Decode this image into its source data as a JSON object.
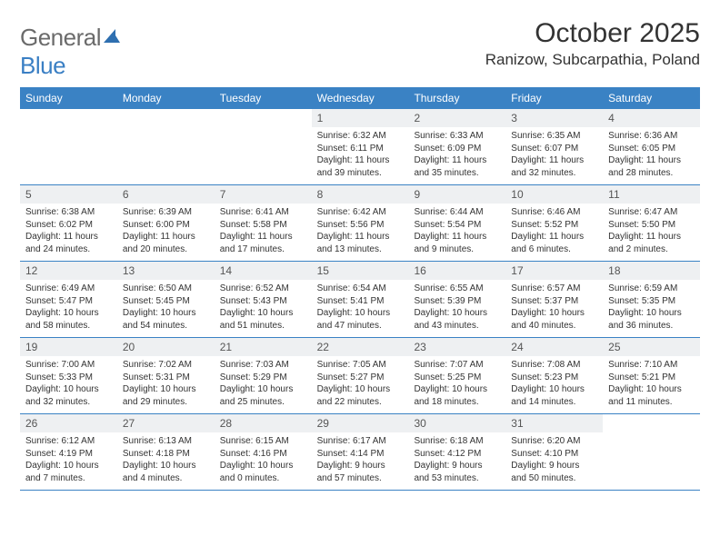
{
  "brand": {
    "part1": "General",
    "part2": "Blue"
  },
  "title": "October 2025",
  "location": "Ranizow, Subcarpathia, Poland",
  "colors": {
    "header_bg": "#3a82c4",
    "header_text": "#ffffff",
    "daynum_bg": "#eef0f2",
    "body_text": "#333333",
    "divider": "#3a82c4",
    "logo_gray": "#6b6b6b",
    "logo_blue": "#3a7fc4"
  },
  "weekdays": [
    "Sunday",
    "Monday",
    "Tuesday",
    "Wednesday",
    "Thursday",
    "Friday",
    "Saturday"
  ],
  "weeks": [
    [
      {
        "num": "",
        "lines": []
      },
      {
        "num": "",
        "lines": []
      },
      {
        "num": "",
        "lines": []
      },
      {
        "num": "1",
        "lines": [
          "Sunrise: 6:32 AM",
          "Sunset: 6:11 PM",
          "Daylight: 11 hours",
          "and 39 minutes."
        ]
      },
      {
        "num": "2",
        "lines": [
          "Sunrise: 6:33 AM",
          "Sunset: 6:09 PM",
          "Daylight: 11 hours",
          "and 35 minutes."
        ]
      },
      {
        "num": "3",
        "lines": [
          "Sunrise: 6:35 AM",
          "Sunset: 6:07 PM",
          "Daylight: 11 hours",
          "and 32 minutes."
        ]
      },
      {
        "num": "4",
        "lines": [
          "Sunrise: 6:36 AM",
          "Sunset: 6:05 PM",
          "Daylight: 11 hours",
          "and 28 minutes."
        ]
      }
    ],
    [
      {
        "num": "5",
        "lines": [
          "Sunrise: 6:38 AM",
          "Sunset: 6:02 PM",
          "Daylight: 11 hours",
          "and 24 minutes."
        ]
      },
      {
        "num": "6",
        "lines": [
          "Sunrise: 6:39 AM",
          "Sunset: 6:00 PM",
          "Daylight: 11 hours",
          "and 20 minutes."
        ]
      },
      {
        "num": "7",
        "lines": [
          "Sunrise: 6:41 AM",
          "Sunset: 5:58 PM",
          "Daylight: 11 hours",
          "and 17 minutes."
        ]
      },
      {
        "num": "8",
        "lines": [
          "Sunrise: 6:42 AM",
          "Sunset: 5:56 PM",
          "Daylight: 11 hours",
          "and 13 minutes."
        ]
      },
      {
        "num": "9",
        "lines": [
          "Sunrise: 6:44 AM",
          "Sunset: 5:54 PM",
          "Daylight: 11 hours",
          "and 9 minutes."
        ]
      },
      {
        "num": "10",
        "lines": [
          "Sunrise: 6:46 AM",
          "Sunset: 5:52 PM",
          "Daylight: 11 hours",
          "and 6 minutes."
        ]
      },
      {
        "num": "11",
        "lines": [
          "Sunrise: 6:47 AM",
          "Sunset: 5:50 PM",
          "Daylight: 11 hours",
          "and 2 minutes."
        ]
      }
    ],
    [
      {
        "num": "12",
        "lines": [
          "Sunrise: 6:49 AM",
          "Sunset: 5:47 PM",
          "Daylight: 10 hours",
          "and 58 minutes."
        ]
      },
      {
        "num": "13",
        "lines": [
          "Sunrise: 6:50 AM",
          "Sunset: 5:45 PM",
          "Daylight: 10 hours",
          "and 54 minutes."
        ]
      },
      {
        "num": "14",
        "lines": [
          "Sunrise: 6:52 AM",
          "Sunset: 5:43 PM",
          "Daylight: 10 hours",
          "and 51 minutes."
        ]
      },
      {
        "num": "15",
        "lines": [
          "Sunrise: 6:54 AM",
          "Sunset: 5:41 PM",
          "Daylight: 10 hours",
          "and 47 minutes."
        ]
      },
      {
        "num": "16",
        "lines": [
          "Sunrise: 6:55 AM",
          "Sunset: 5:39 PM",
          "Daylight: 10 hours",
          "and 43 minutes."
        ]
      },
      {
        "num": "17",
        "lines": [
          "Sunrise: 6:57 AM",
          "Sunset: 5:37 PM",
          "Daylight: 10 hours",
          "and 40 minutes."
        ]
      },
      {
        "num": "18",
        "lines": [
          "Sunrise: 6:59 AM",
          "Sunset: 5:35 PM",
          "Daylight: 10 hours",
          "and 36 minutes."
        ]
      }
    ],
    [
      {
        "num": "19",
        "lines": [
          "Sunrise: 7:00 AM",
          "Sunset: 5:33 PM",
          "Daylight: 10 hours",
          "and 32 minutes."
        ]
      },
      {
        "num": "20",
        "lines": [
          "Sunrise: 7:02 AM",
          "Sunset: 5:31 PM",
          "Daylight: 10 hours",
          "and 29 minutes."
        ]
      },
      {
        "num": "21",
        "lines": [
          "Sunrise: 7:03 AM",
          "Sunset: 5:29 PM",
          "Daylight: 10 hours",
          "and 25 minutes."
        ]
      },
      {
        "num": "22",
        "lines": [
          "Sunrise: 7:05 AM",
          "Sunset: 5:27 PM",
          "Daylight: 10 hours",
          "and 22 minutes."
        ]
      },
      {
        "num": "23",
        "lines": [
          "Sunrise: 7:07 AM",
          "Sunset: 5:25 PM",
          "Daylight: 10 hours",
          "and 18 minutes."
        ]
      },
      {
        "num": "24",
        "lines": [
          "Sunrise: 7:08 AM",
          "Sunset: 5:23 PM",
          "Daylight: 10 hours",
          "and 14 minutes."
        ]
      },
      {
        "num": "25",
        "lines": [
          "Sunrise: 7:10 AM",
          "Sunset: 5:21 PM",
          "Daylight: 10 hours",
          "and 11 minutes."
        ]
      }
    ],
    [
      {
        "num": "26",
        "lines": [
          "Sunrise: 6:12 AM",
          "Sunset: 4:19 PM",
          "Daylight: 10 hours",
          "and 7 minutes."
        ]
      },
      {
        "num": "27",
        "lines": [
          "Sunrise: 6:13 AM",
          "Sunset: 4:18 PM",
          "Daylight: 10 hours",
          "and 4 minutes."
        ]
      },
      {
        "num": "28",
        "lines": [
          "Sunrise: 6:15 AM",
          "Sunset: 4:16 PM",
          "Daylight: 10 hours",
          "and 0 minutes."
        ]
      },
      {
        "num": "29",
        "lines": [
          "Sunrise: 6:17 AM",
          "Sunset: 4:14 PM",
          "Daylight: 9 hours",
          "and 57 minutes."
        ]
      },
      {
        "num": "30",
        "lines": [
          "Sunrise: 6:18 AM",
          "Sunset: 4:12 PM",
          "Daylight: 9 hours",
          "and 53 minutes."
        ]
      },
      {
        "num": "31",
        "lines": [
          "Sunrise: 6:20 AM",
          "Sunset: 4:10 PM",
          "Daylight: 9 hours",
          "and 50 minutes."
        ]
      },
      {
        "num": "",
        "lines": []
      }
    ]
  ]
}
